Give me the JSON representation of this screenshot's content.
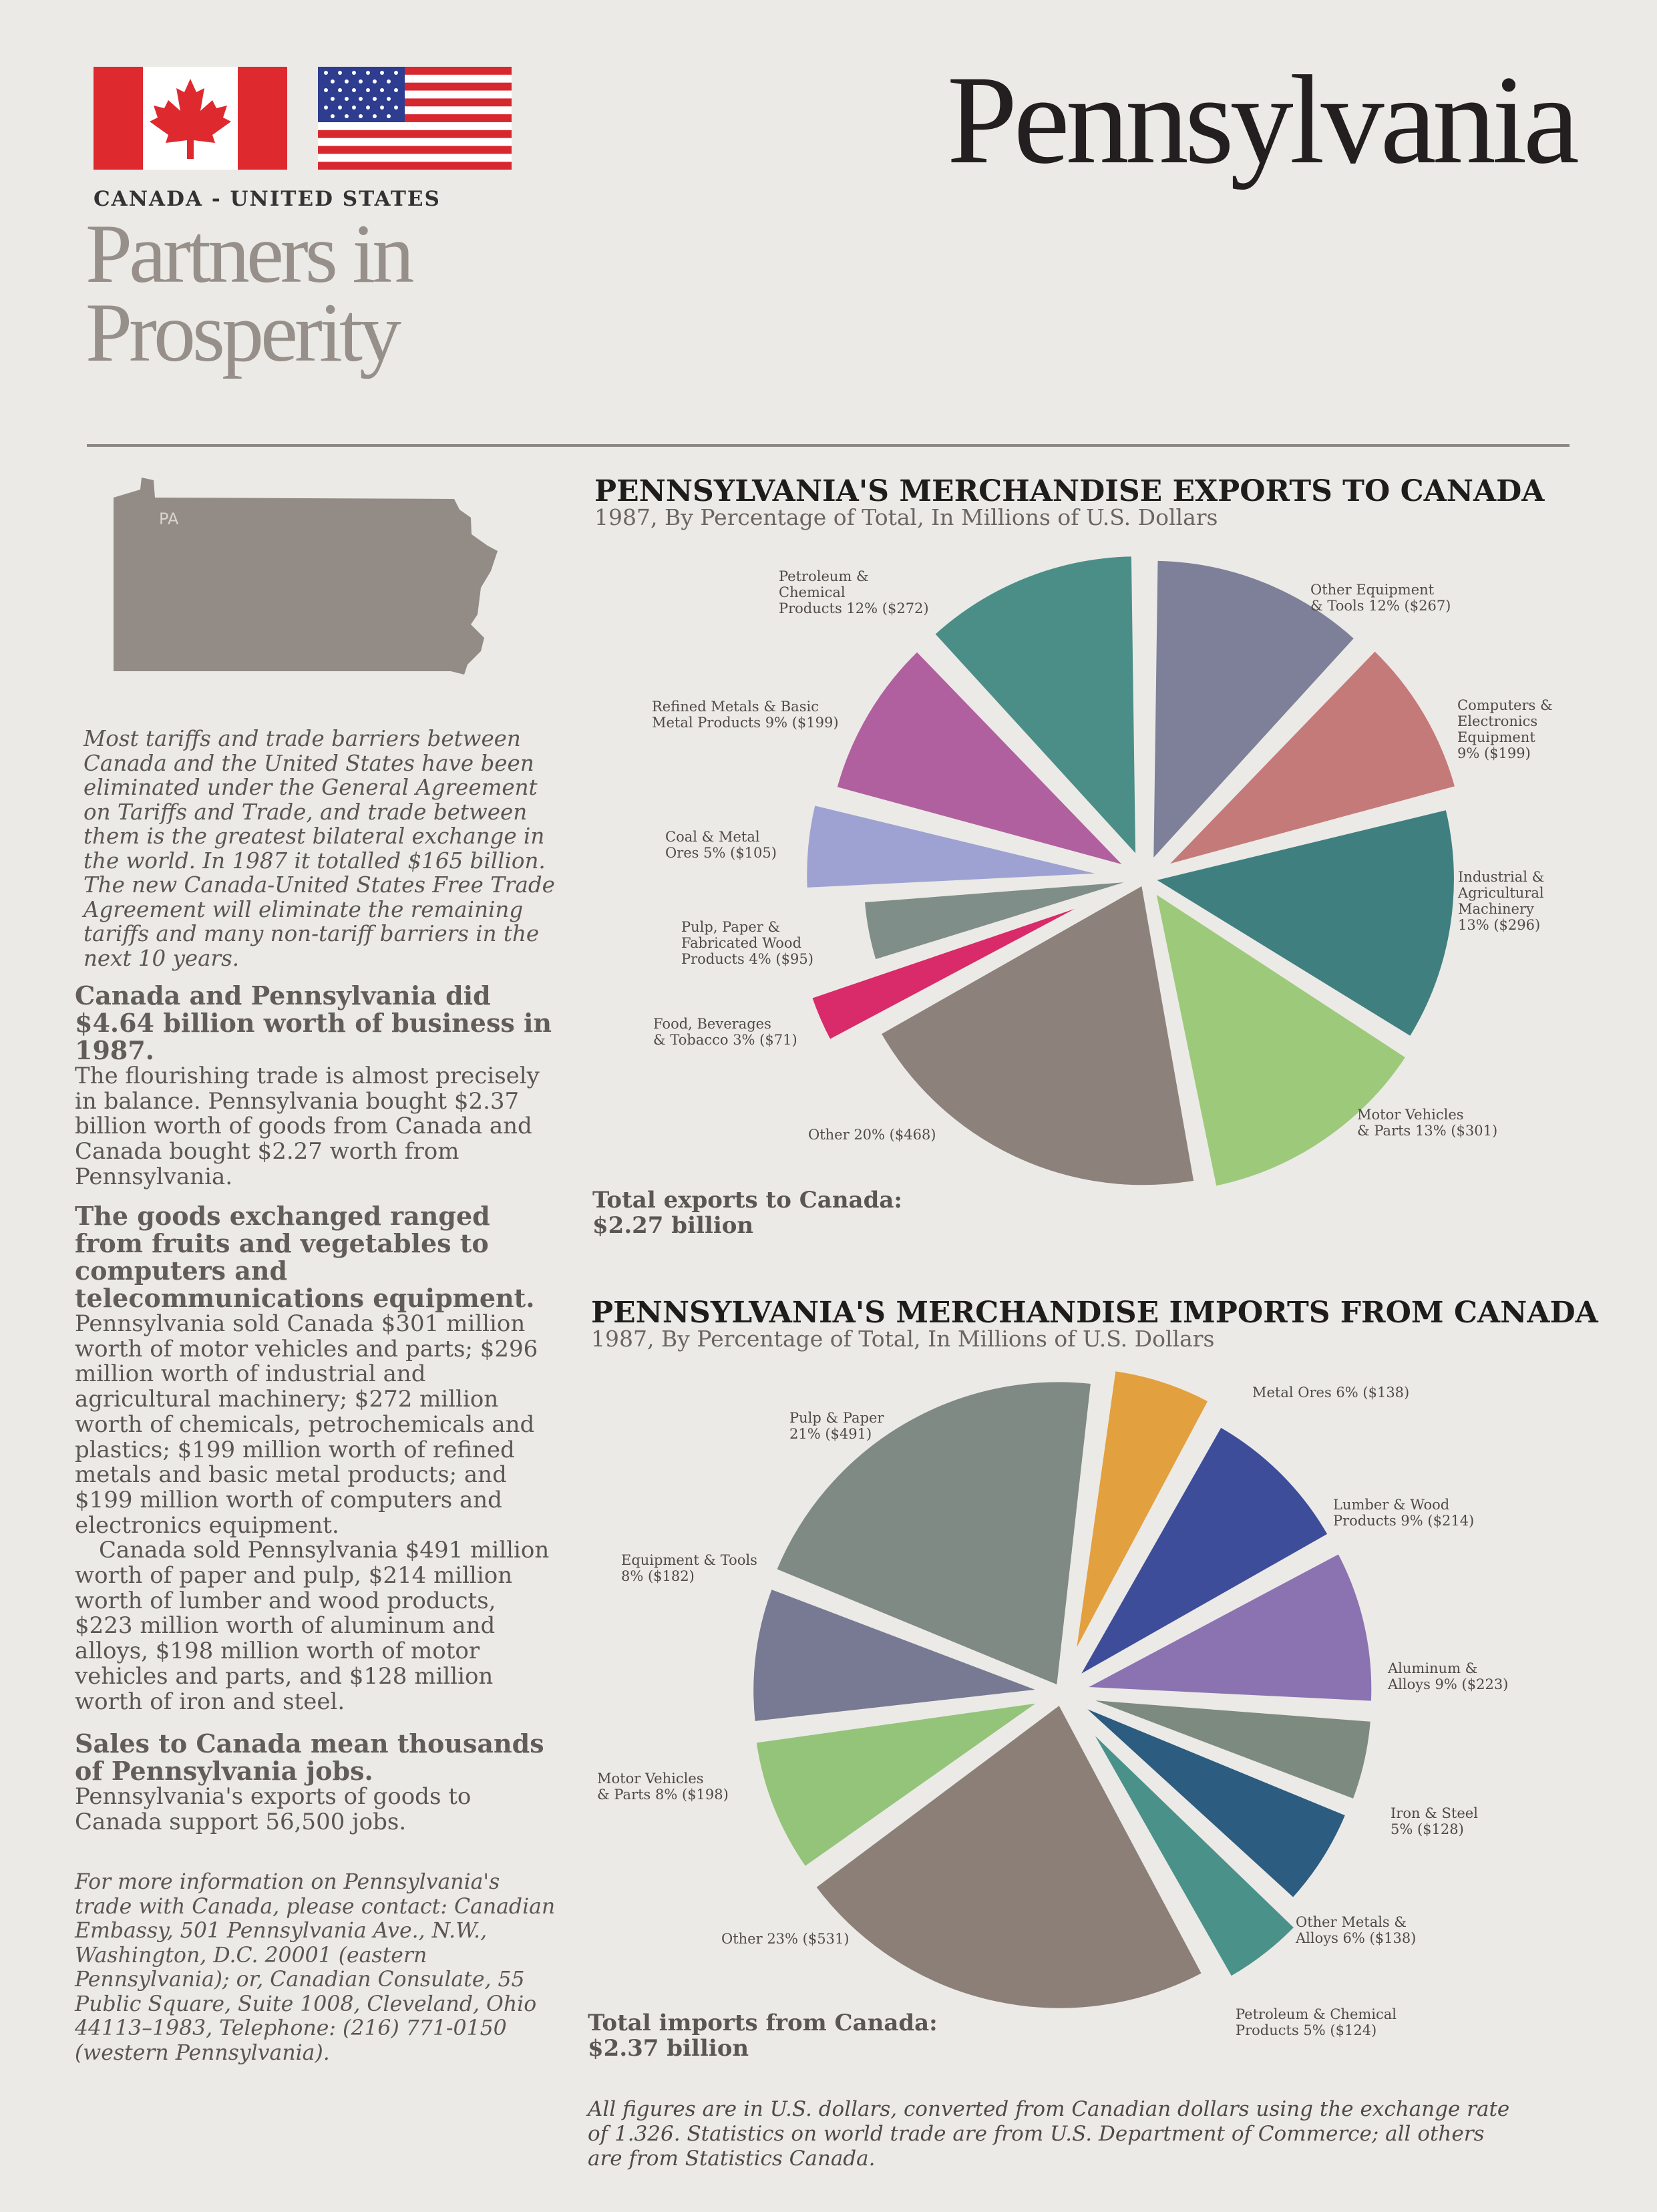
{
  "header": {
    "subtitle": "CANADA - UNITED STATES",
    "title_line1": "Partners in",
    "title_line2": "Prosperity",
    "state_name": "Pennsylvania"
  },
  "map": {
    "label": "PA",
    "color": "#938b85"
  },
  "intro": "Most tariffs and trade barriers between Canada and the United States have been eliminated under the General Agreement on Tariffs and Trade, and trade between them is the greatest bilateral exchange in the world. In 1987 it totalled $165 billion. The new Canada-United States Free Trade Agreement will eliminate the remaining tariffs and many non-tariff barriers in the next 10 years.",
  "sections": [
    {
      "heading": "Canada and Pennsylvania did $4.64 billion worth of business in 1987.",
      "body": [
        "The flourishing trade is almost precisely in balance. Pennsylvania bought $2.37 billion worth of goods from Canada and Canada bought $2.27 worth from Pennsylvania."
      ]
    },
    {
      "heading": "The goods exchanged ranged from fruits and vegetables to computers and telecommunications equipment.",
      "body": [
        "Pennsylvania sold Canada $301 million worth of motor vehicles and parts; $296 million worth of industrial and agricultural machinery; $272 million worth of chemicals, petrochemicals and plastics; $199 million worth of refined metals and basic metal products; and $199 million worth of computers and electronics equipment.",
        "Canada sold Pennsylvania $491 million worth of paper and pulp, $214 million worth of lumber and wood products, $223 million worth of aluminum and alloys, $198 million worth of motor vehicles and parts, and $128 million worth of iron and steel."
      ]
    },
    {
      "heading": "Sales to Canada mean thousands of Pennsylvania jobs.",
      "body": [
        "Pennsylvania's exports of goods to Canada support 56,500 jobs."
      ]
    }
  ],
  "contact": "For more information on Pennsylvania's trade with Canada, please contact: Canadian Embassy, 501 Pennsylvania Ave., N.W., Washington, D.C. 20001 (eastern Pennsylvania); or, Canadian Consulate, 55 Public Square, Suite 1008, Cleveland, Ohio 44113–1983, Telephone: (216) 771-0150 (western Pennsylvania).",
  "chart_data": [
    {
      "type": "pie",
      "title": "PENNSYLVANIA'S MERCHANDISE EXPORTS TO CANADA",
      "subtitle": "1987, By Percentage of Total, In Millions of U.S. Dollars",
      "total_label": "Total exports to Canada:",
      "total_value": "$2.27 billion",
      "slices": [
        {
          "label": [
            "Other Equipment",
            "& Tools 12% ($267)"
          ],
          "percent": 12,
          "value": 267,
          "color": "#7d8098"
        },
        {
          "label": [
            "Computers &",
            "Electronics",
            "Equipment",
            "9% ($199)"
          ],
          "percent": 9,
          "value": 199,
          "color": "#c47a79"
        },
        {
          "label": [
            "Industrial &",
            "Agricultural",
            "Machinery",
            "13% ($296)"
          ],
          "percent": 13,
          "value": 296,
          "color": "#3f7f80"
        },
        {
          "label": [
            "Motor Vehicles",
            "& Parts 13% ($301)"
          ],
          "percent": 13,
          "value": 301,
          "color": "#9dca7a"
        },
        {
          "label": [
            "Other 20% ($468)"
          ],
          "percent": 20,
          "value": 468,
          "color": "#8d817b"
        },
        {
          "label": [
            "Food, Beverages",
            "& Tobacco 3% ($71)"
          ],
          "percent": 3,
          "value": 71,
          "color": "#d92a6a"
        },
        {
          "label": [
            "Pulp, Paper &",
            "Fabricated Wood",
            "Products 4% ($95)"
          ],
          "percent": 4,
          "value": 95,
          "color": "#7f8e88"
        },
        {
          "label": [
            "Coal & Metal",
            "Ores 5% ($105)"
          ],
          "percent": 5,
          "value": 105,
          "color": "#9da2d2"
        },
        {
          "label": [
            "Refined Metals & Basic",
            "Metal Products 9% ($199)"
          ],
          "percent": 9,
          "value": 199,
          "color": "#b0609e"
        },
        {
          "label": [
            "Petroleum &",
            "Chemical",
            "Products 12% ($272)"
          ],
          "percent": 12,
          "value": 272,
          "color": "#4b8e87"
        }
      ]
    },
    {
      "type": "pie",
      "title": "PENNSYLVANIA'S MERCHANDISE IMPORTS FROM CANADA",
      "subtitle": "1987, By Percentage of Total, In Millions of U.S. Dollars",
      "total_label": "Total imports from Canada:",
      "total_value": "$2.37 billion",
      "slices": [
        {
          "label": [
            "Metal Ores 6% ($138)"
          ],
          "percent": 6,
          "value": 138,
          "color": "#e3a03f"
        },
        {
          "label": [
            "Lumber & Wood",
            "Products 9% ($214)"
          ],
          "percent": 9,
          "value": 214,
          "color": "#3e4d9a"
        },
        {
          "label": [
            "Aluminum &",
            "Alloys 9% ($223)"
          ],
          "percent": 9,
          "value": 223,
          "color": "#8b73b2"
        },
        {
          "label": [
            "Iron & Steel",
            "5% ($128)"
          ],
          "percent": 5,
          "value": 128,
          "color": "#7c8a80"
        },
        {
          "label": [
            "Other Metals &",
            "Alloys 6% ($138)"
          ],
          "percent": 6,
          "value": 138,
          "color": "#2c5c80"
        },
        {
          "label": [
            "Petroleum & Chemical",
            "Products 5% ($124)"
          ],
          "percent": 5,
          "value": 124,
          "color": "#4a9289"
        },
        {
          "label": [
            "Other 23% ($531)"
          ],
          "percent": 23,
          "value": 531,
          "color": "#8b7f78"
        },
        {
          "label": [
            "Motor Vehicles",
            "& Parts 8% ($198)"
          ],
          "percent": 8,
          "value": 198,
          "color": "#93c47a"
        },
        {
          "label": [
            "Equipment & Tools",
            "8% ($182)"
          ],
          "percent": 8,
          "value": 182,
          "color": "#777a92"
        },
        {
          "label": [
            "Pulp & Paper",
            "21% ($491)"
          ],
          "percent": 21,
          "value": 491,
          "color": "#7f8a85"
        }
      ]
    }
  ],
  "footnote": "All figures are in U.S. dollars, converted from Canadian dollars using the exchange rate of 1.326. Statistics on world trade are from U.S. Department of Commerce; all others are from Statistics Canada."
}
